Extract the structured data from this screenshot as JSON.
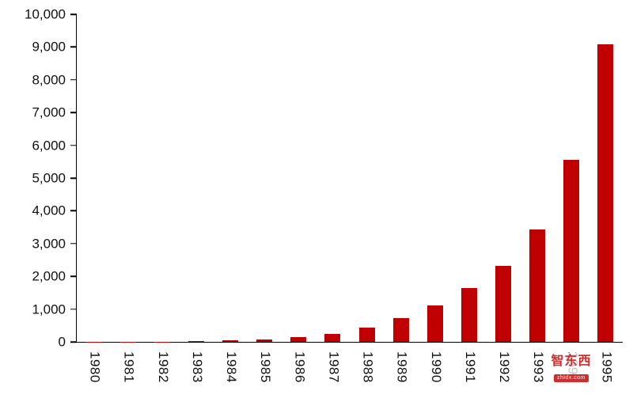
{
  "chart_data": {
    "type": "bar",
    "title": "",
    "xlabel": "",
    "ylabel": "",
    "categories": [
      "1980",
      "1981",
      "1982",
      "1983",
      "1984",
      "1985",
      "1986",
      "1987",
      "1988",
      "1989",
      "1990",
      "1991",
      "1992",
      "1993",
      "1994",
      "1995"
    ],
    "values": [
      2,
      4,
      8,
      15,
      45,
      75,
      140,
      250,
      430,
      730,
      1100,
      1640,
      2310,
      3430,
      5550,
      9080
    ],
    "ylim": [
      0,
      10000
    ],
    "ytick_step": 1000,
    "ytick_labels": [
      "0",
      "1,000",
      "2,000",
      "3,000",
      "4,000",
      "5,000",
      "6,000",
      "7,000",
      "8,000",
      "9,000",
      "10,000"
    ],
    "bar_color": "#C00000",
    "axis_color": "#000000",
    "grid": false,
    "legend": false,
    "x_label_rotation": 90
  },
  "watermark": {
    "text": "智东西",
    "subtext": "zhidx.com",
    "color": "#D42B2B"
  }
}
